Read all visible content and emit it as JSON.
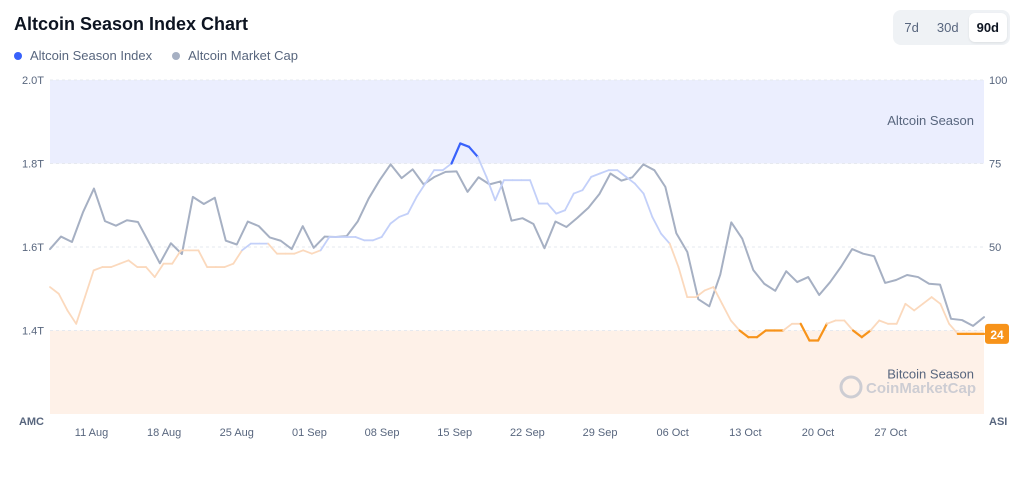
{
  "header": {
    "title": "Altcoin Season Index Chart",
    "ranges": [
      "7d",
      "30d",
      "90d"
    ],
    "active_range": "90d"
  },
  "legend": [
    {
      "label": "Altcoin Season Index",
      "color": "#3861fb"
    },
    {
      "label": "Altcoin Market Cap",
      "color": "#a6b0c3"
    }
  ],
  "chart_data": {
    "type": "line",
    "x_ticks": [
      "11 Aug",
      "18 Aug",
      "25 Aug",
      "01 Sep",
      "08 Sep",
      "15 Sep",
      "22 Sep",
      "29 Sep",
      "06 Oct",
      "13 Oct",
      "20 Oct",
      "27 Oct"
    ],
    "left_axis": {
      "label": "AMC",
      "ticks": [
        "2.0T",
        "1.8T",
        "1.6T",
        "1.4T"
      ],
      "range": [
        1.2,
        2.0
      ],
      "unit": "T"
    },
    "right_axis": {
      "label": "ASI",
      "ticks": [
        "100",
        "75",
        "50"
      ],
      "range": [
        0,
        100
      ]
    },
    "zones": [
      {
        "label": "Altcoin Season",
        "from": 75,
        "to": 100,
        "color": "#ebeefe"
      },
      {
        "label": "Bitcoin Season",
        "from": 0,
        "to": 25,
        "color": "#fef1e8"
      }
    ],
    "current_index_badge": "24",
    "watermark": "CoinMarketCap",
    "grid": true,
    "series": [
      {
        "name": "Altcoin Season Index",
        "axis": "right",
        "day_start": 0,
        "day_end": 90,
        "values": [
          38,
          36,
          31,
          27,
          35,
          43,
          44,
          44,
          45,
          46,
          44,
          44,
          41,
          45,
          45,
          49,
          49,
          49,
          44,
          44,
          44,
          45,
          49,
          51,
          51,
          51,
          48,
          48,
          48,
          49,
          48,
          49,
          53,
          53,
          53,
          53,
          52,
          52,
          53,
          57,
          59,
          60,
          65,
          69,
          73,
          73,
          75,
          81,
          80,
          77,
          71,
          64,
          70,
          70,
          70,
          70,
          63,
          63,
          60,
          61,
          66,
          67,
          71,
          72,
          73,
          73,
          71,
          69,
          66,
          59,
          54,
          51,
          44,
          35,
          35,
          37,
          38,
          33,
          28,
          25,
          23,
          23,
          25,
          25,
          25,
          27,
          27,
          22,
          22,
          27,
          28,
          28,
          25,
          23,
          25,
          28,
          27,
          27,
          33,
          31,
          33,
          35,
          33,
          27,
          24,
          24,
          24,
          24
        ]
      },
      {
        "name": "Altcoin Market Cap",
        "axis": "left",
        "day_start": 0,
        "day_end": 90,
        "values": [
          1.595,
          1.625,
          1.612,
          1.683,
          1.74,
          1.662,
          1.651,
          1.664,
          1.66,
          1.611,
          1.561,
          1.609,
          1.583,
          1.72,
          1.703,
          1.718,
          1.615,
          1.606,
          1.661,
          1.65,
          1.623,
          1.615,
          1.595,
          1.65,
          1.598,
          1.625,
          1.624,
          1.626,
          1.661,
          1.716,
          1.76,
          1.798,
          1.765,
          1.786,
          1.75,
          1.768,
          1.78,
          1.781,
          1.732,
          1.767,
          1.75,
          1.757,
          1.663,
          1.669,
          1.655,
          1.597,
          1.661,
          1.648,
          1.67,
          1.694,
          1.727,
          1.776,
          1.759,
          1.767,
          1.798,
          1.784,
          1.744,
          1.633,
          1.588,
          1.475,
          1.458,
          1.534,
          1.659,
          1.62,
          1.545,
          1.512,
          1.495,
          1.542,
          1.516,
          1.528,
          1.485,
          1.516,
          1.553,
          1.595,
          1.584,
          1.578,
          1.514,
          1.521,
          1.533,
          1.528,
          1.512,
          1.51,
          1.428,
          1.425,
          1.411,
          1.432
        ]
      }
    ]
  }
}
